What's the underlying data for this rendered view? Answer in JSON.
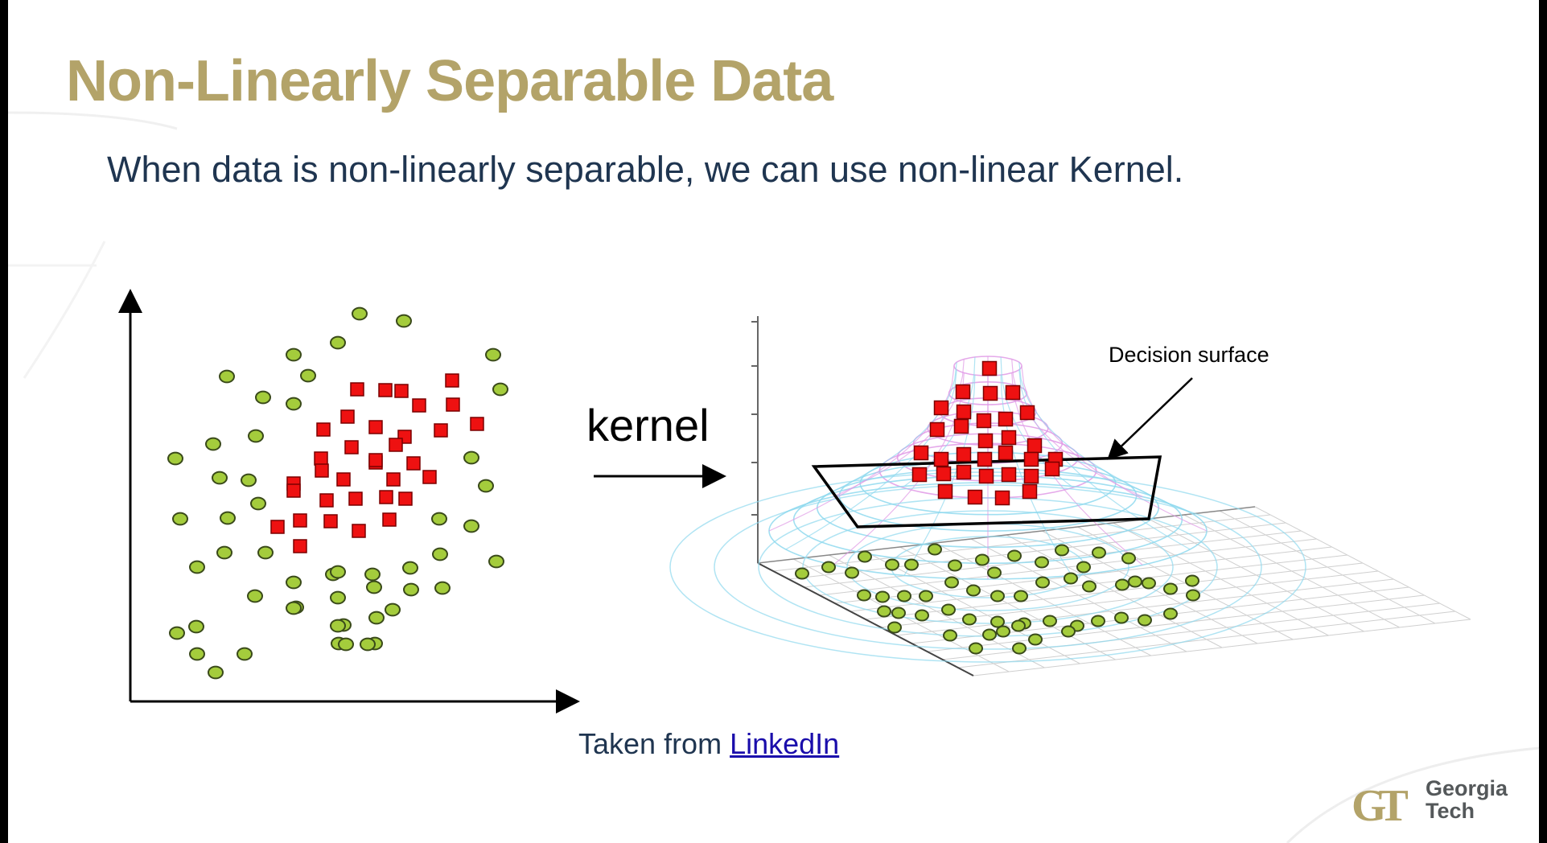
{
  "slide": {
    "title": "Non-Linearly Separable Data",
    "subtitle": "When data is non-linearly separable, we can use non-linear Kernel.",
    "caption_prefix": "Taken from ",
    "caption_link": "LinkedIn"
  },
  "figure": {
    "arrow_label": "kernel",
    "surface_label": "Decision surface",
    "colors": {
      "circle_fill": "#a4cc3c",
      "square_fill": "#ee1111",
      "mesh_pink": "#e09ae6",
      "mesh_cyan": "#8fd9ee",
      "text": "#000000"
    },
    "legend": {
      "circle_class": "green circle",
      "square_class": "red square"
    }
  },
  "logo": {
    "mark": "GT",
    "line1": "Georgia",
    "line2": "Tech",
    "color": "#B3A369"
  }
}
